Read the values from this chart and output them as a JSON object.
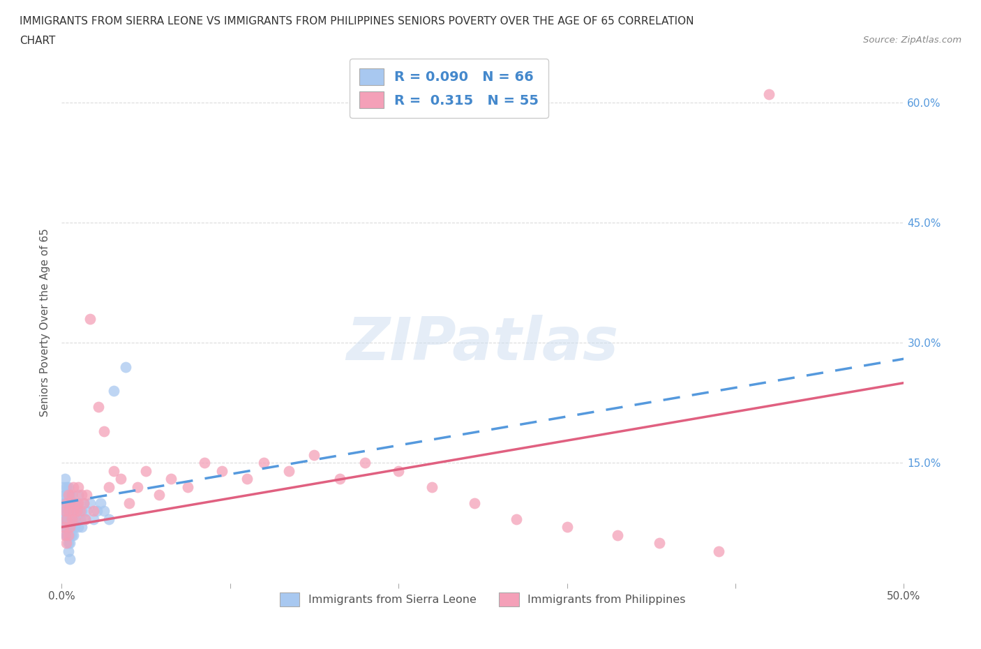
{
  "title_line1": "IMMIGRANTS FROM SIERRA LEONE VS IMMIGRANTS FROM PHILIPPINES SENIORS POVERTY OVER THE AGE OF 65 CORRELATION",
  "title_line2": "CHART",
  "source": "Source: ZipAtlas.com",
  "ylabel": "Seniors Poverty Over the Age of 65",
  "x_label_bottom": "Immigrants from Sierra Leone",
  "x_label_bottom2": "Immigrants from Philippines",
  "xlim": [
    0.0,
    0.5
  ],
  "ylim": [
    0.0,
    0.65
  ],
  "xticks": [
    0.0,
    0.1,
    0.2,
    0.3,
    0.4,
    0.5
  ],
  "yticks": [
    0.0,
    0.15,
    0.3,
    0.45,
    0.6
  ],
  "ytick_labels_right": [
    "",
    "15.0%",
    "30.0%",
    "45.0%",
    "60.0%"
  ],
  "xtick_labels": [
    "0.0%",
    "",
    "",
    "",
    "",
    "50.0%"
  ],
  "R_sierra": 0.09,
  "N_sierra": 66,
  "R_phil": 0.315,
  "N_phil": 55,
  "sierra_color": "#a8c8f0",
  "phil_color": "#f4a0b8",
  "sierra_line_color": "#5599dd",
  "phil_line_color": "#e06080",
  "background_color": "#ffffff",
  "grid_color": "#cccccc",
  "watermark": "ZIPatlas",
  "sierra_line": [
    0.0,
    0.1,
    0.5,
    0.28
  ],
  "phil_line": [
    0.0,
    0.07,
    0.5,
    0.25
  ],
  "sierra_x": [
    0.001,
    0.001,
    0.001,
    0.002,
    0.002,
    0.002,
    0.002,
    0.002,
    0.002,
    0.003,
    0.003,
    0.003,
    0.003,
    0.003,
    0.003,
    0.003,
    0.003,
    0.003,
    0.003,
    0.004,
    0.004,
    0.004,
    0.004,
    0.004,
    0.004,
    0.004,
    0.004,
    0.004,
    0.004,
    0.005,
    0.005,
    0.005,
    0.005,
    0.005,
    0.005,
    0.005,
    0.005,
    0.006,
    0.006,
    0.006,
    0.006,
    0.006,
    0.007,
    0.007,
    0.007,
    0.008,
    0.008,
    0.009,
    0.009,
    0.01,
    0.01,
    0.01,
    0.011,
    0.012,
    0.012,
    0.013,
    0.014,
    0.015,
    0.017,
    0.019,
    0.021,
    0.023,
    0.025,
    0.028,
    0.031,
    0.038
  ],
  "sierra_y": [
    0.08,
    0.1,
    0.12,
    0.07,
    0.09,
    0.11,
    0.13,
    0.1,
    0.08,
    0.06,
    0.08,
    0.1,
    0.11,
    0.09,
    0.07,
    0.12,
    0.08,
    0.1,
    0.06,
    0.05,
    0.07,
    0.09,
    0.11,
    0.08,
    0.1,
    0.12,
    0.06,
    0.08,
    0.04,
    0.06,
    0.08,
    0.1,
    0.09,
    0.07,
    0.11,
    0.05,
    0.03,
    0.07,
    0.09,
    0.08,
    0.1,
    0.06,
    0.08,
    0.1,
    0.06,
    0.09,
    0.07,
    0.08,
    0.1,
    0.09,
    0.07,
    0.11,
    0.08,
    0.09,
    0.07,
    0.1,
    0.08,
    0.09,
    0.1,
    0.08,
    0.09,
    0.1,
    0.09,
    0.08,
    0.24,
    0.27
  ],
  "phil_x": [
    0.001,
    0.002,
    0.002,
    0.003,
    0.003,
    0.003,
    0.004,
    0.004,
    0.004,
    0.005,
    0.005,
    0.006,
    0.006,
    0.007,
    0.007,
    0.008,
    0.008,
    0.009,
    0.01,
    0.01,
    0.011,
    0.012,
    0.013,
    0.014,
    0.015,
    0.017,
    0.019,
    0.022,
    0.025,
    0.028,
    0.031,
    0.035,
    0.04,
    0.045,
    0.05,
    0.058,
    0.065,
    0.075,
    0.085,
    0.095,
    0.11,
    0.12,
    0.135,
    0.15,
    0.165,
    0.18,
    0.2,
    0.22,
    0.245,
    0.27,
    0.3,
    0.33,
    0.355,
    0.39,
    0.42
  ],
  "phil_y": [
    0.07,
    0.06,
    0.09,
    0.05,
    0.08,
    0.1,
    0.06,
    0.09,
    0.11,
    0.07,
    0.1,
    0.08,
    0.11,
    0.09,
    0.12,
    0.08,
    0.1,
    0.09,
    0.1,
    0.12,
    0.09,
    0.11,
    0.1,
    0.08,
    0.11,
    0.33,
    0.09,
    0.22,
    0.19,
    0.12,
    0.14,
    0.13,
    0.1,
    0.12,
    0.14,
    0.11,
    0.13,
    0.12,
    0.15,
    0.14,
    0.13,
    0.15,
    0.14,
    0.16,
    0.13,
    0.15,
    0.14,
    0.12,
    0.1,
    0.08,
    0.07,
    0.06,
    0.05,
    0.04,
    0.61
  ]
}
